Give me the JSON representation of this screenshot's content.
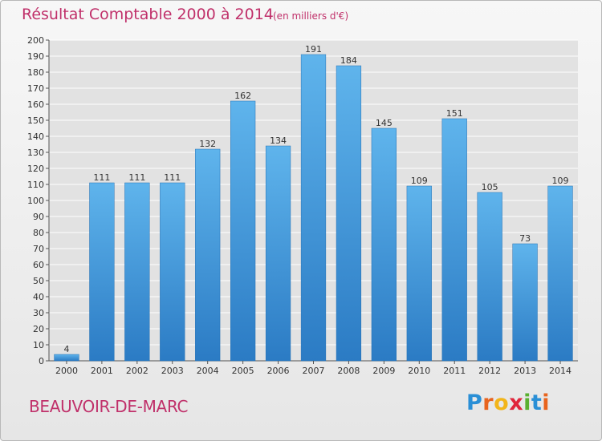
{
  "header": {
    "title": "Résultat Comptable 2000 à 2014",
    "subtitle": "(en milliers d'€)"
  },
  "footer": {
    "commune": "BEAUVOIR-DE-MARC",
    "logo": {
      "letters": [
        "P",
        "r",
        "o",
        "x",
        "i",
        "t",
        "i"
      ],
      "colors": [
        "#2a8fd6",
        "#e8641e",
        "#f2b51a",
        "#e0263c",
        "#5ab031",
        "#2a8fd6",
        "#e8641e"
      ]
    }
  },
  "colors": {
    "bar_top": "#5fb4ec",
    "bar_bottom": "#2b7bc4",
    "grid": "#ffffff",
    "plot_bg": "#e2e2e2",
    "text_accent": "#c0306a"
  },
  "chart_data": {
    "type": "bar",
    "title": "Résultat Comptable 2000 à 2014",
    "subtitle": "(en milliers d'€)",
    "xlabel": "",
    "ylabel": "",
    "categories": [
      "2000",
      "2001",
      "2002",
      "2003",
      "2004",
      "2005",
      "2006",
      "2007",
      "2008",
      "2009",
      "2010",
      "2011",
      "2012",
      "2013",
      "2014"
    ],
    "values": [
      4,
      111,
      111,
      111,
      132,
      162,
      134,
      191,
      184,
      145,
      109,
      151,
      105,
      73,
      109
    ],
    "ylim": [
      0,
      200
    ],
    "yticks": [
      0,
      10,
      20,
      30,
      40,
      50,
      60,
      70,
      80,
      90,
      100,
      110,
      120,
      130,
      140,
      150,
      160,
      170,
      180,
      190,
      200
    ],
    "grid": true,
    "data_labels": true
  }
}
